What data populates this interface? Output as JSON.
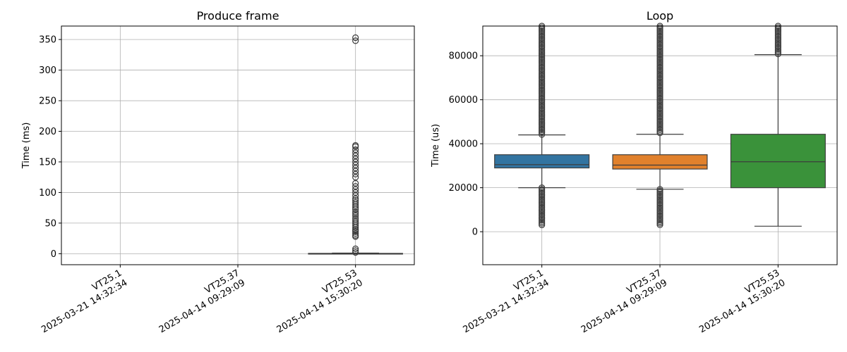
{
  "chart_data": [
    {
      "type": "box",
      "title": "Produce frame",
      "xlabel": "",
      "ylabel": "Time (ms)",
      "ylim": [
        -18,
        372
      ],
      "yticks": [
        0,
        50,
        100,
        150,
        200,
        250,
        300,
        350
      ],
      "grid": true,
      "categories": [
        [
          "VT25.1",
          "2025-03-21 14:32:34"
        ],
        [
          "VT25.37",
          "2025-04-14 09:29:09"
        ],
        [
          "VT25.53",
          "2025-04-14 15:30:20"
        ]
      ],
      "boxes": [
        null,
        null,
        {
          "q1": 0,
          "median": 0.2,
          "q3": 0.5,
          "whisker_low": 0,
          "whisker_high": 1,
          "color": "#3d3d3d",
          "outliers": [
            2,
            5,
            8,
            28,
            30,
            33,
            36,
            38,
            40,
            43,
            46,
            49,
            52,
            55,
            58,
            62,
            65,
            68,
            72,
            75,
            78,
            81,
            84,
            87,
            90,
            95,
            100,
            105,
            110,
            115,
            125,
            130,
            135,
            140,
            145,
            150,
            155,
            160,
            165,
            170,
            175,
            177,
            348,
            353
          ]
        }
      ]
    },
    {
      "type": "box",
      "title": "Loop",
      "xlabel": "",
      "ylabel": "Time (us)",
      "ylim": [
        -15000,
        93500
      ],
      "yticks": [
        0,
        20000,
        40000,
        60000,
        80000
      ],
      "grid": true,
      "categories": [
        [
          "VT25.1",
          "2025-03-21 14:32:34"
        ],
        [
          "VT25.37",
          "2025-04-14 09:29:09"
        ],
        [
          "VT25.53",
          "2025-04-14 15:30:20"
        ]
      ],
      "boxes": [
        {
          "q1": 29000,
          "median": 30500,
          "q3": 35000,
          "whisker_low": 20000,
          "whisker_high": 44000,
          "color": "#3274a1",
          "outliers_low": [
            2500,
            20000
          ],
          "outliers_high": [
            44000,
            93500
          ]
        },
        {
          "q1": 28500,
          "median": 30300,
          "q3": 35000,
          "whisker_low": 19300,
          "whisker_high": 44300,
          "color": "#e1812c",
          "outliers_low": [
            2500,
            19300
          ],
          "outliers_high": [
            44300,
            93500
          ]
        },
        {
          "q1": 20000,
          "median": 31800,
          "q3": 44300,
          "whisker_low": 2500,
          "whisker_high": 80500,
          "color": "#3a923a",
          "outliers_low": null,
          "outliers_high": [
            80500,
            93500
          ]
        }
      ]
    }
  ]
}
